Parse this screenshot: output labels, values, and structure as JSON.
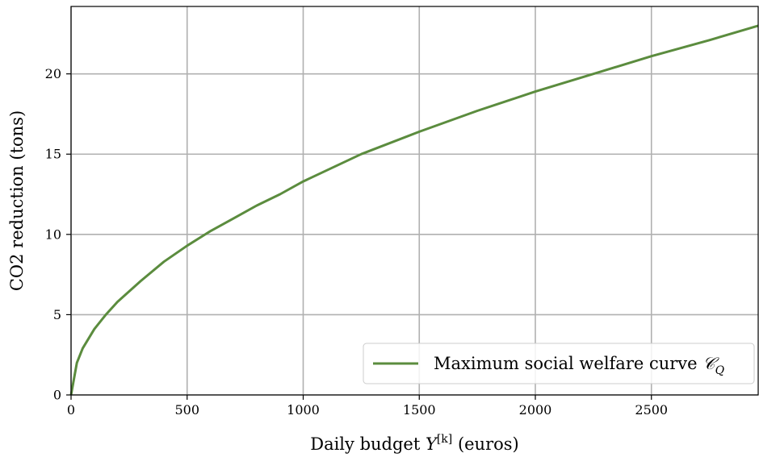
{
  "chart_data": {
    "type": "line",
    "title": "",
    "xlabel": {
      "prefix": "Daily budget ",
      "var": "Y",
      "sup": "[k]",
      "suffix": " (euros)"
    },
    "ylabel": "CO2 reduction (tons)",
    "xlim": [
      0,
      2960
    ],
    "ylim": [
      0,
      24.2
    ],
    "xticks": [
      0,
      500,
      1000,
      1500,
      2000,
      2500
    ],
    "xtick_labels": [
      "0",
      "500",
      "1000",
      "1500",
      "2000",
      "2500"
    ],
    "yticks": [
      0,
      5,
      10,
      15,
      20
    ],
    "ytick_labels": [
      "0",
      "5",
      "10",
      "15",
      "20"
    ],
    "grid": true,
    "legend": {
      "placement": "lower-right"
    },
    "series": [
      {
        "name": {
          "text": "Maximum social welfare curve ",
          "symbol": "𝒞",
          "sub": "Q"
        },
        "color": "#5b8c3e",
        "x": [
          0,
          25,
          50,
          100,
          150,
          200,
          300,
          400,
          500,
          600,
          700,
          800,
          900,
          1000,
          1250,
          1500,
          1750,
          2000,
          2250,
          2500,
          2750,
          2960
        ],
        "y": [
          0,
          2.0,
          2.9,
          4.1,
          5.0,
          5.8,
          7.1,
          8.3,
          9.3,
          10.2,
          11.0,
          11.8,
          12.5,
          13.3,
          15.0,
          16.4,
          17.7,
          18.9,
          20.0,
          21.1,
          22.1,
          23.0
        ]
      }
    ]
  }
}
